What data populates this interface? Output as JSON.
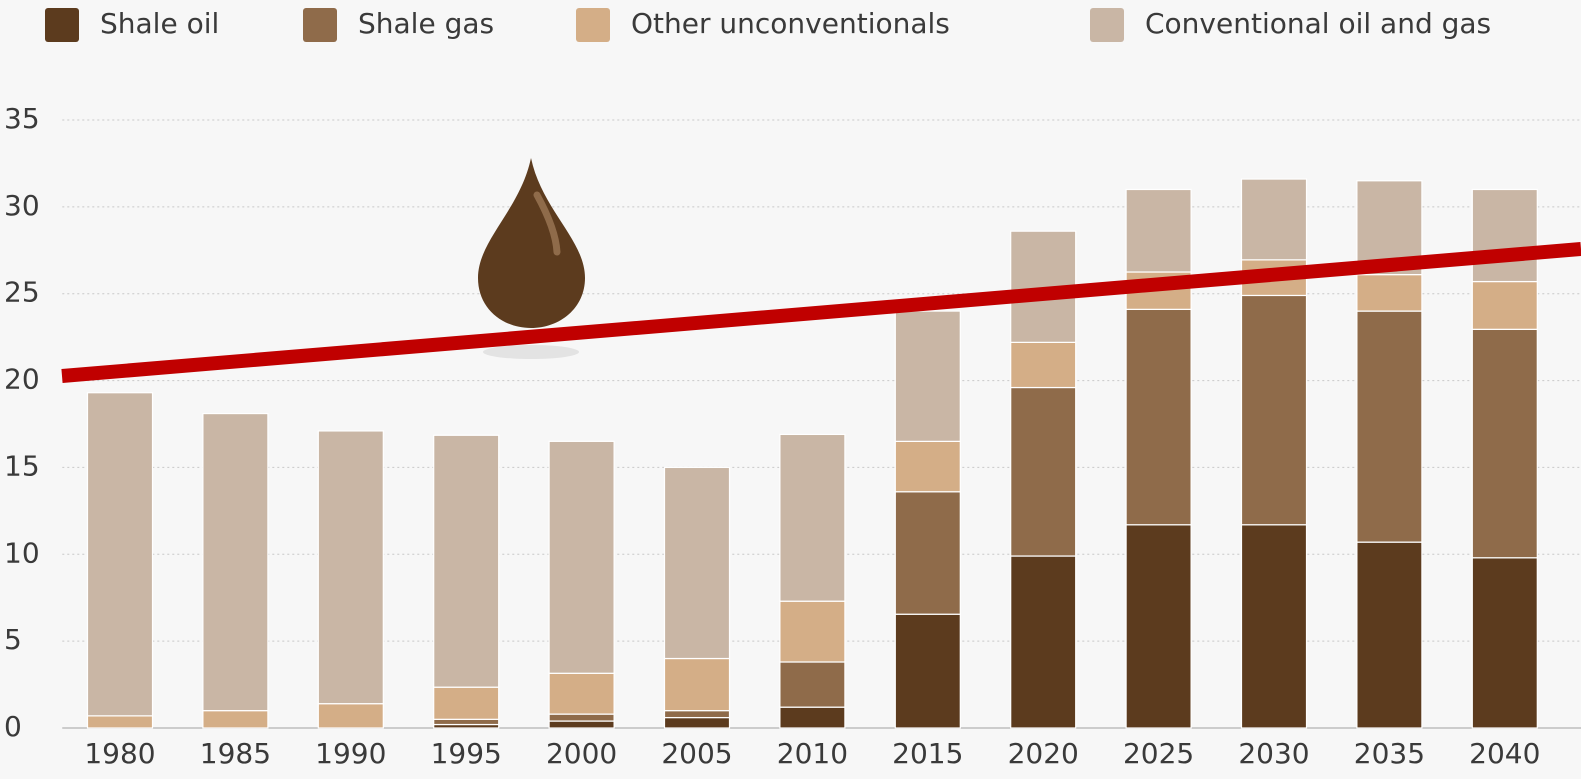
{
  "chart_data": {
    "type": "stacked-bar",
    "categories": [
      "1980",
      "1985",
      "1990",
      "1995",
      "2000",
      "2005",
      "2010",
      "2015",
      "2020",
      "2025",
      "2030",
      "2035",
      "2040"
    ],
    "series": [
      {
        "name": "Shale oil",
        "color": "#5c3b1e",
        "values": [
          0,
          0,
          0,
          0.2,
          0.4,
          0.6,
          1.2,
          6.55,
          9.9,
          11.7,
          11.7,
          10.7,
          9.8
        ]
      },
      {
        "name": "Shale gas",
        "color": "#8f6b4a",
        "values": [
          0,
          0,
          0,
          0.3,
          0.4,
          0.4,
          2.6,
          7.05,
          9.7,
          12.4,
          13.2,
          13.3,
          13.15
        ]
      },
      {
        "name": "Other unconventionals",
        "color": "#d4ae87",
        "values": [
          0.7,
          1.0,
          1.4,
          1.85,
          2.35,
          3.0,
          3.5,
          2.9,
          2.6,
          2.15,
          2.05,
          2.1,
          2.75
        ]
      },
      {
        "name": "Conventional oil and gas",
        "color": "#c9b6a5",
        "values": [
          18.6,
          17.1,
          15.7,
          14.5,
          13.35,
          11.0,
          9.6,
          7.5,
          6.4,
          4.75,
          4.65,
          5.4,
          5.3
        ]
      }
    ],
    "ylim": [
      0,
      35
    ],
    "yticks": [
      0,
      5,
      10,
      15,
      20,
      25,
      30,
      35
    ],
    "grid": true,
    "legend": "top"
  }
}
